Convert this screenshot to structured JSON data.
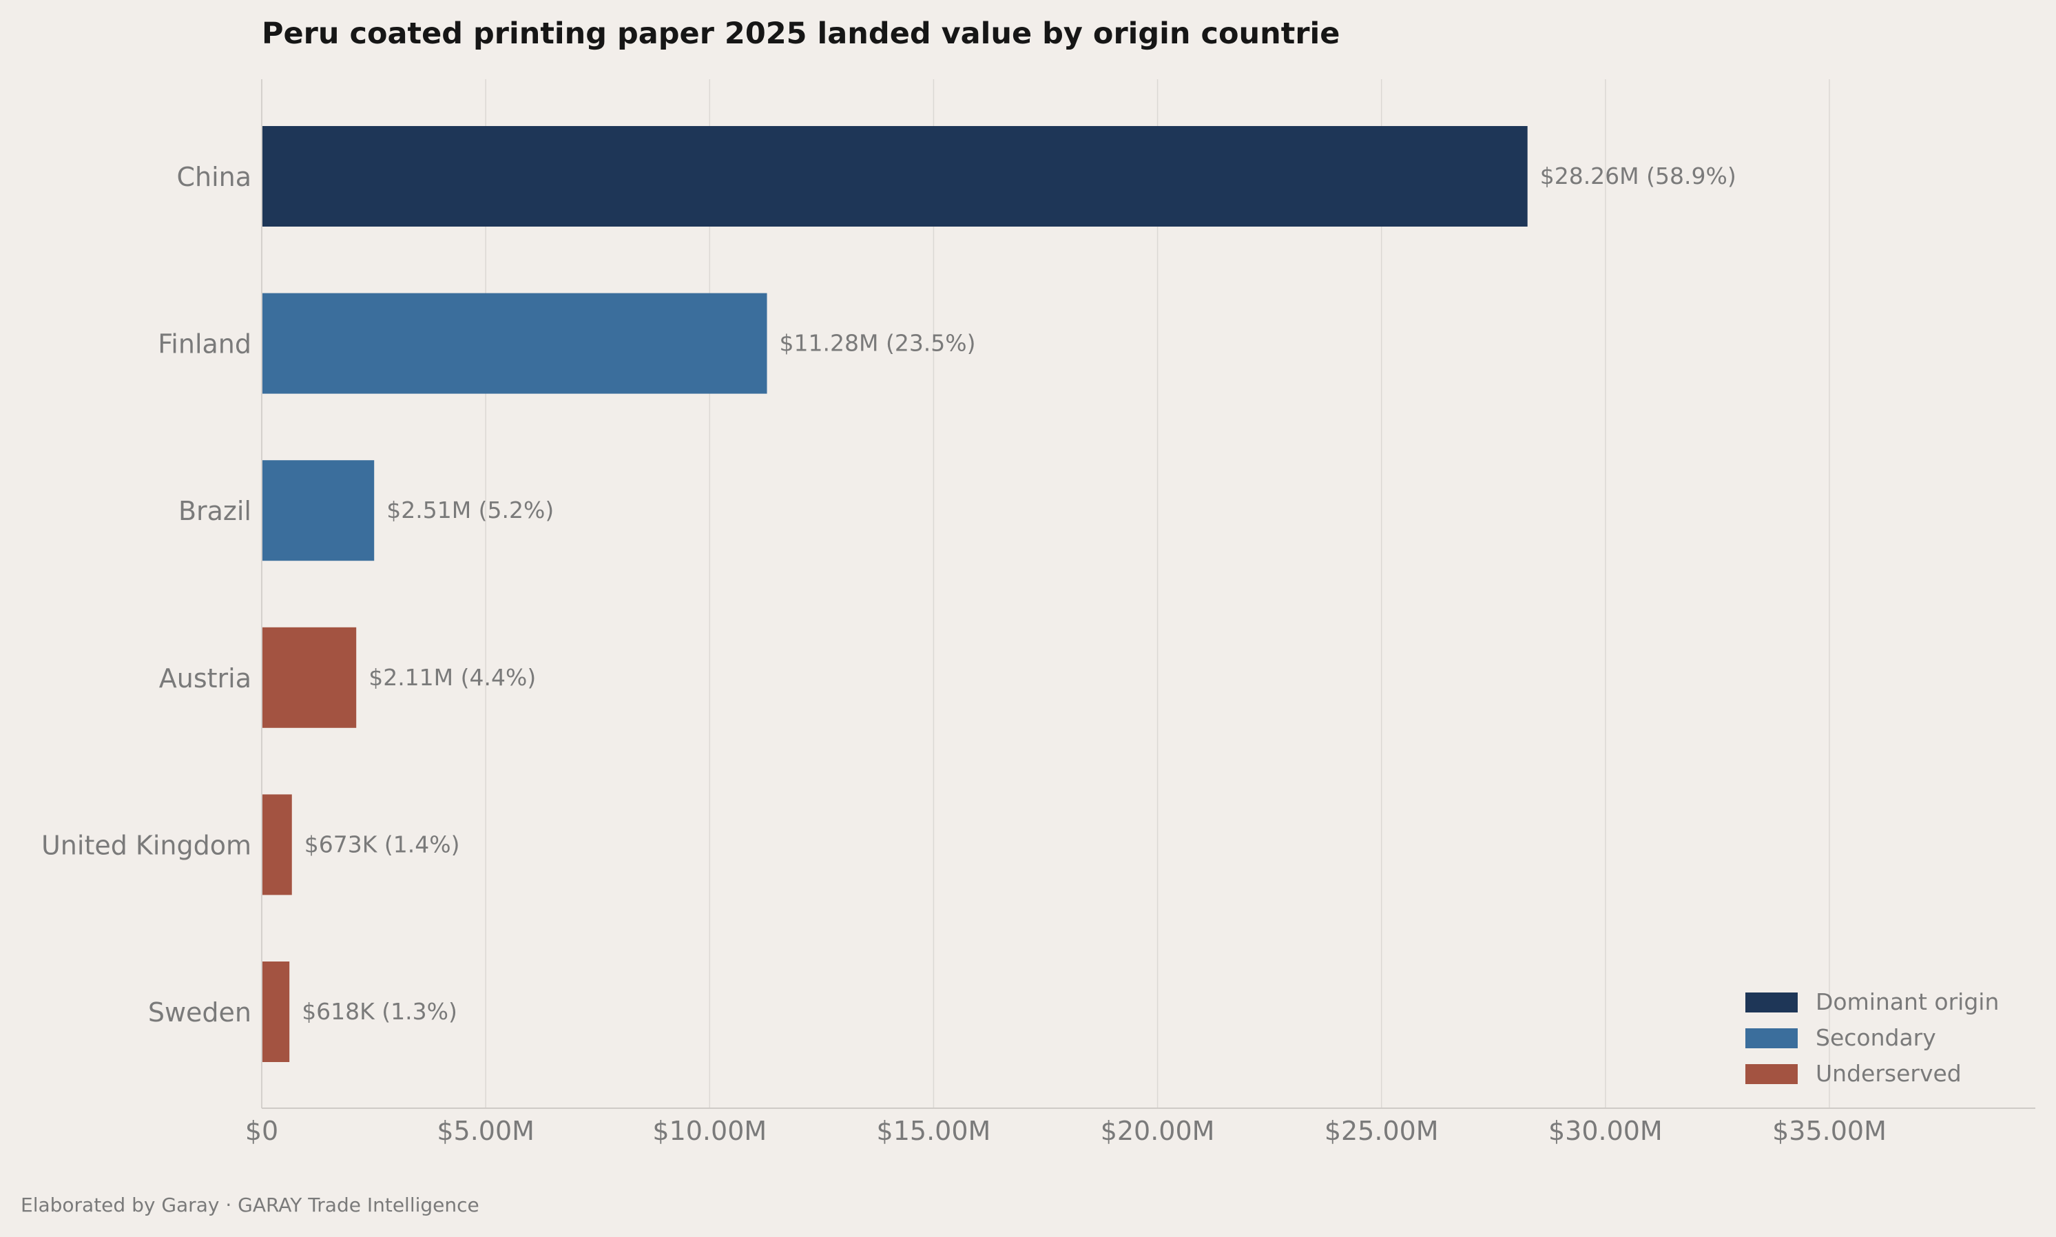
{
  "chart_data": {
    "type": "bar",
    "orientation": "horizontal",
    "title": "Peru coated printing paper 2025 landed value by origin countrie",
    "categories": [
      "China",
      "Finland",
      "Brazil",
      "Austria",
      "United Kingdom",
      "Sweden"
    ],
    "values": [
      28260000,
      11280000,
      2510000,
      2110000,
      673000,
      618000
    ],
    "value_labels": [
      "$28.26M  (58.9%)",
      "$11.28M  (23.5%)",
      "$2.51M  (5.2%)",
      "$2.11M  (4.4%)",
      "$673K  (1.4%)",
      "$618K  (1.3%)"
    ],
    "bar_groups": [
      "dominant",
      "secondary",
      "secondary",
      "underserved",
      "underserved",
      "underserved"
    ],
    "groups": {
      "dominant": {
        "name": "Dominant origin",
        "color": "#1e3657"
      },
      "secondary": {
        "name": "Secondary",
        "color": "#3b6e9c"
      },
      "underserved": {
        "name": "Underserved",
        "color": "#a35341"
      }
    },
    "legend_order": [
      "dominant",
      "secondary",
      "underserved"
    ],
    "legend_position": "bottom-right",
    "xlim": [
      0,
      39600000
    ],
    "xticks": [
      0,
      5000000,
      10000000,
      15000000,
      20000000,
      25000000,
      30000000,
      35000000
    ],
    "xtick_labels": [
      "$0",
      "$5.00M",
      "$10.00M",
      "$15.00M",
      "$20.00M",
      "$25.00M",
      "$30.00M",
      "$35.00M"
    ],
    "grid": "vertical",
    "xlabel": "",
    "ylabel": ""
  },
  "footer": {
    "text": "Elaborated by Garay  ·  GARAY Trade Intelligence"
  }
}
